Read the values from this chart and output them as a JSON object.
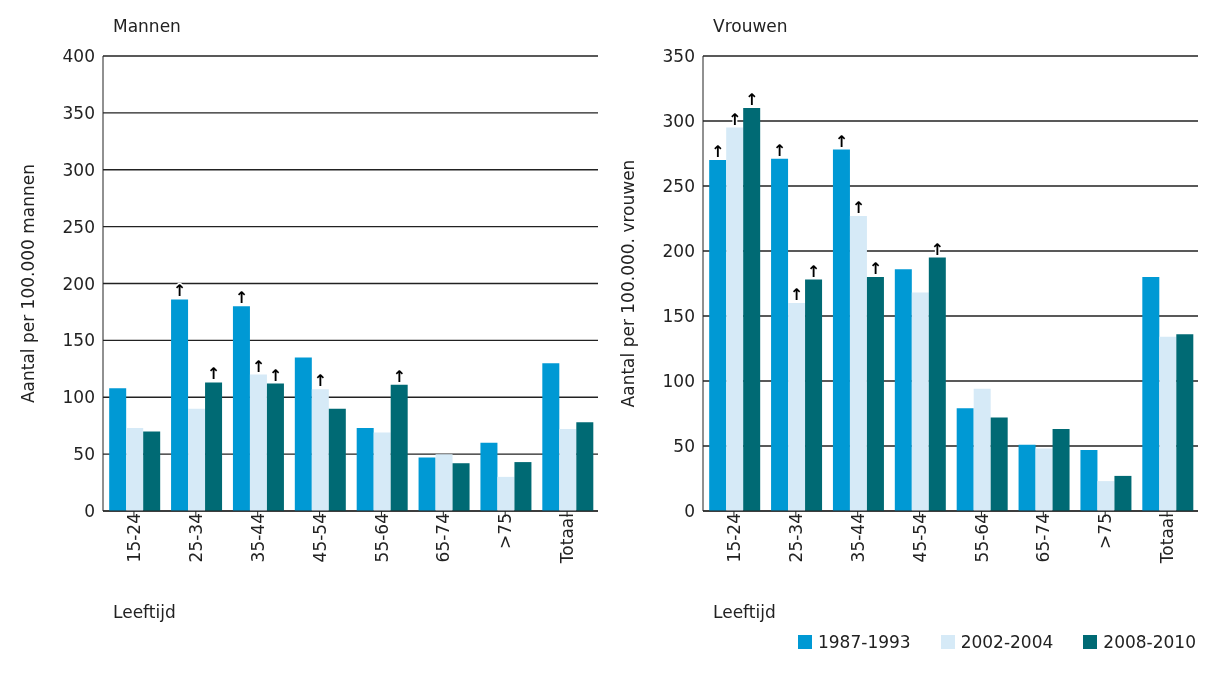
{
  "chart_data": [
    {
      "type": "bar",
      "title": "Mannen",
      "xlabel": "Leeftijd",
      "ylabel": "Aantal per 100.000 mannen",
      "categories": [
        "15-24",
        "25-34",
        "35-44",
        "45-54",
        "55-64",
        "65-74",
        ">75",
        "Totaal"
      ],
      "ylim": [
        0,
        400
      ],
      "yticks": [
        0,
        50,
        100,
        150,
        200,
        250,
        300,
        350,
        400
      ],
      "grid": "y",
      "legend": false,
      "series": [
        {
          "color": "#0099d4",
          "values": [
            108,
            186,
            180,
            135,
            73,
            47,
            60,
            130
          ],
          "value_labels": [
            null,
            "↑",
            "↑",
            null,
            null,
            null,
            null,
            null
          ]
        },
        {
          "color": "#d6eaf7",
          "values": [
            73,
            90,
            120,
            107,
            69,
            50,
            30,
            72
          ],
          "value_labels": [
            null,
            null,
            "↑",
            "↑",
            null,
            null,
            null,
            null
          ]
        },
        {
          "color": "#006a74",
          "values": [
            70,
            113,
            112,
            90,
            111,
            42,
            43,
            78
          ],
          "value_labels": [
            null,
            "↑",
            "↑",
            null,
            "↑",
            null,
            null,
            null
          ]
        }
      ]
    },
    {
      "type": "bar",
      "title": "Vrouwen",
      "xlabel": "Leeftijd",
      "ylabel": "Aantal per 100.000. vrouwen",
      "categories": [
        "15-24",
        "25-34",
        "35-44",
        "45-54",
        "55-64",
        "65-74",
        ">75",
        "Totaal"
      ],
      "ylim": [
        0,
        350
      ],
      "yticks": [
        0,
        50,
        100,
        150,
        200,
        250,
        300,
        350
      ],
      "grid": "y",
      "legend": "bottom",
      "series": [
        {
          "name": "1987-1993",
          "color": "#0099d4",
          "values": [
            270,
            271,
            278,
            186,
            79,
            51,
            47,
            180
          ],
          "value_labels": [
            "↑",
            "↑",
            "↑",
            null,
            null,
            null,
            null,
            null
          ]
        },
        {
          "name": "2002-2004",
          "color": "#d6eaf7",
          "values": [
            295,
            160,
            227,
            168,
            94,
            48,
            23,
            134
          ],
          "value_labels": [
            "↑",
            "↑",
            "↑",
            null,
            null,
            null,
            null,
            null
          ]
        },
        {
          "name": "2008-2010",
          "color": "#006a74",
          "values": [
            310,
            178,
            180,
            195,
            72,
            63,
            27,
            136
          ],
          "value_labels": [
            "↑",
            "↑",
            "↑",
            "↑",
            null,
            null,
            null,
            null
          ]
        }
      ]
    }
  ]
}
